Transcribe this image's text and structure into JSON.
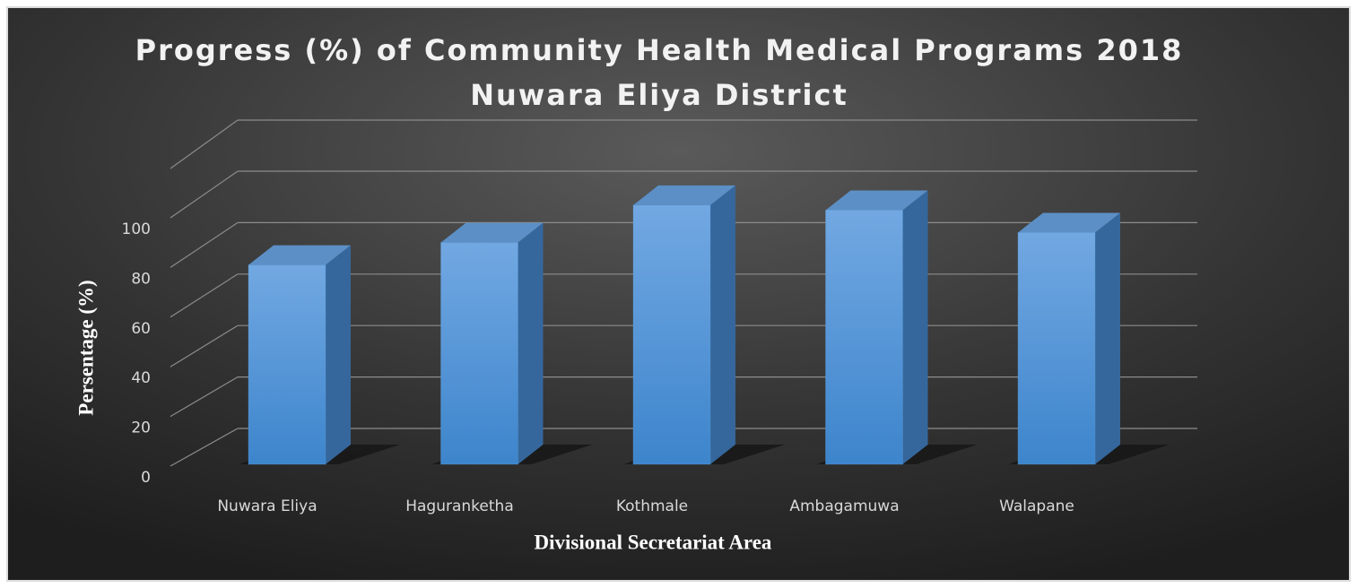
{
  "chart_data": {
    "type": "bar3d",
    "title": "Progress (%) of Community Health Medical Programs 2018",
    "subtitle": "Nuwara Eliya District",
    "x_label": "Divisional Secretariat Area",
    "y_label": "Persentage (%)",
    "categories": [
      "Nuwara Eliya",
      "Haguranketha",
      "Kothmale",
      "Ambagamuwa",
      "Walapane"
    ],
    "values": [
      80,
      89,
      104,
      102,
      93
    ],
    "color": "#5b9bd5",
    "ylim": [
      0,
      100
    ],
    "yticks": [
      0,
      20,
      40,
      60,
      80,
      100
    ],
    "grid": true
  }
}
